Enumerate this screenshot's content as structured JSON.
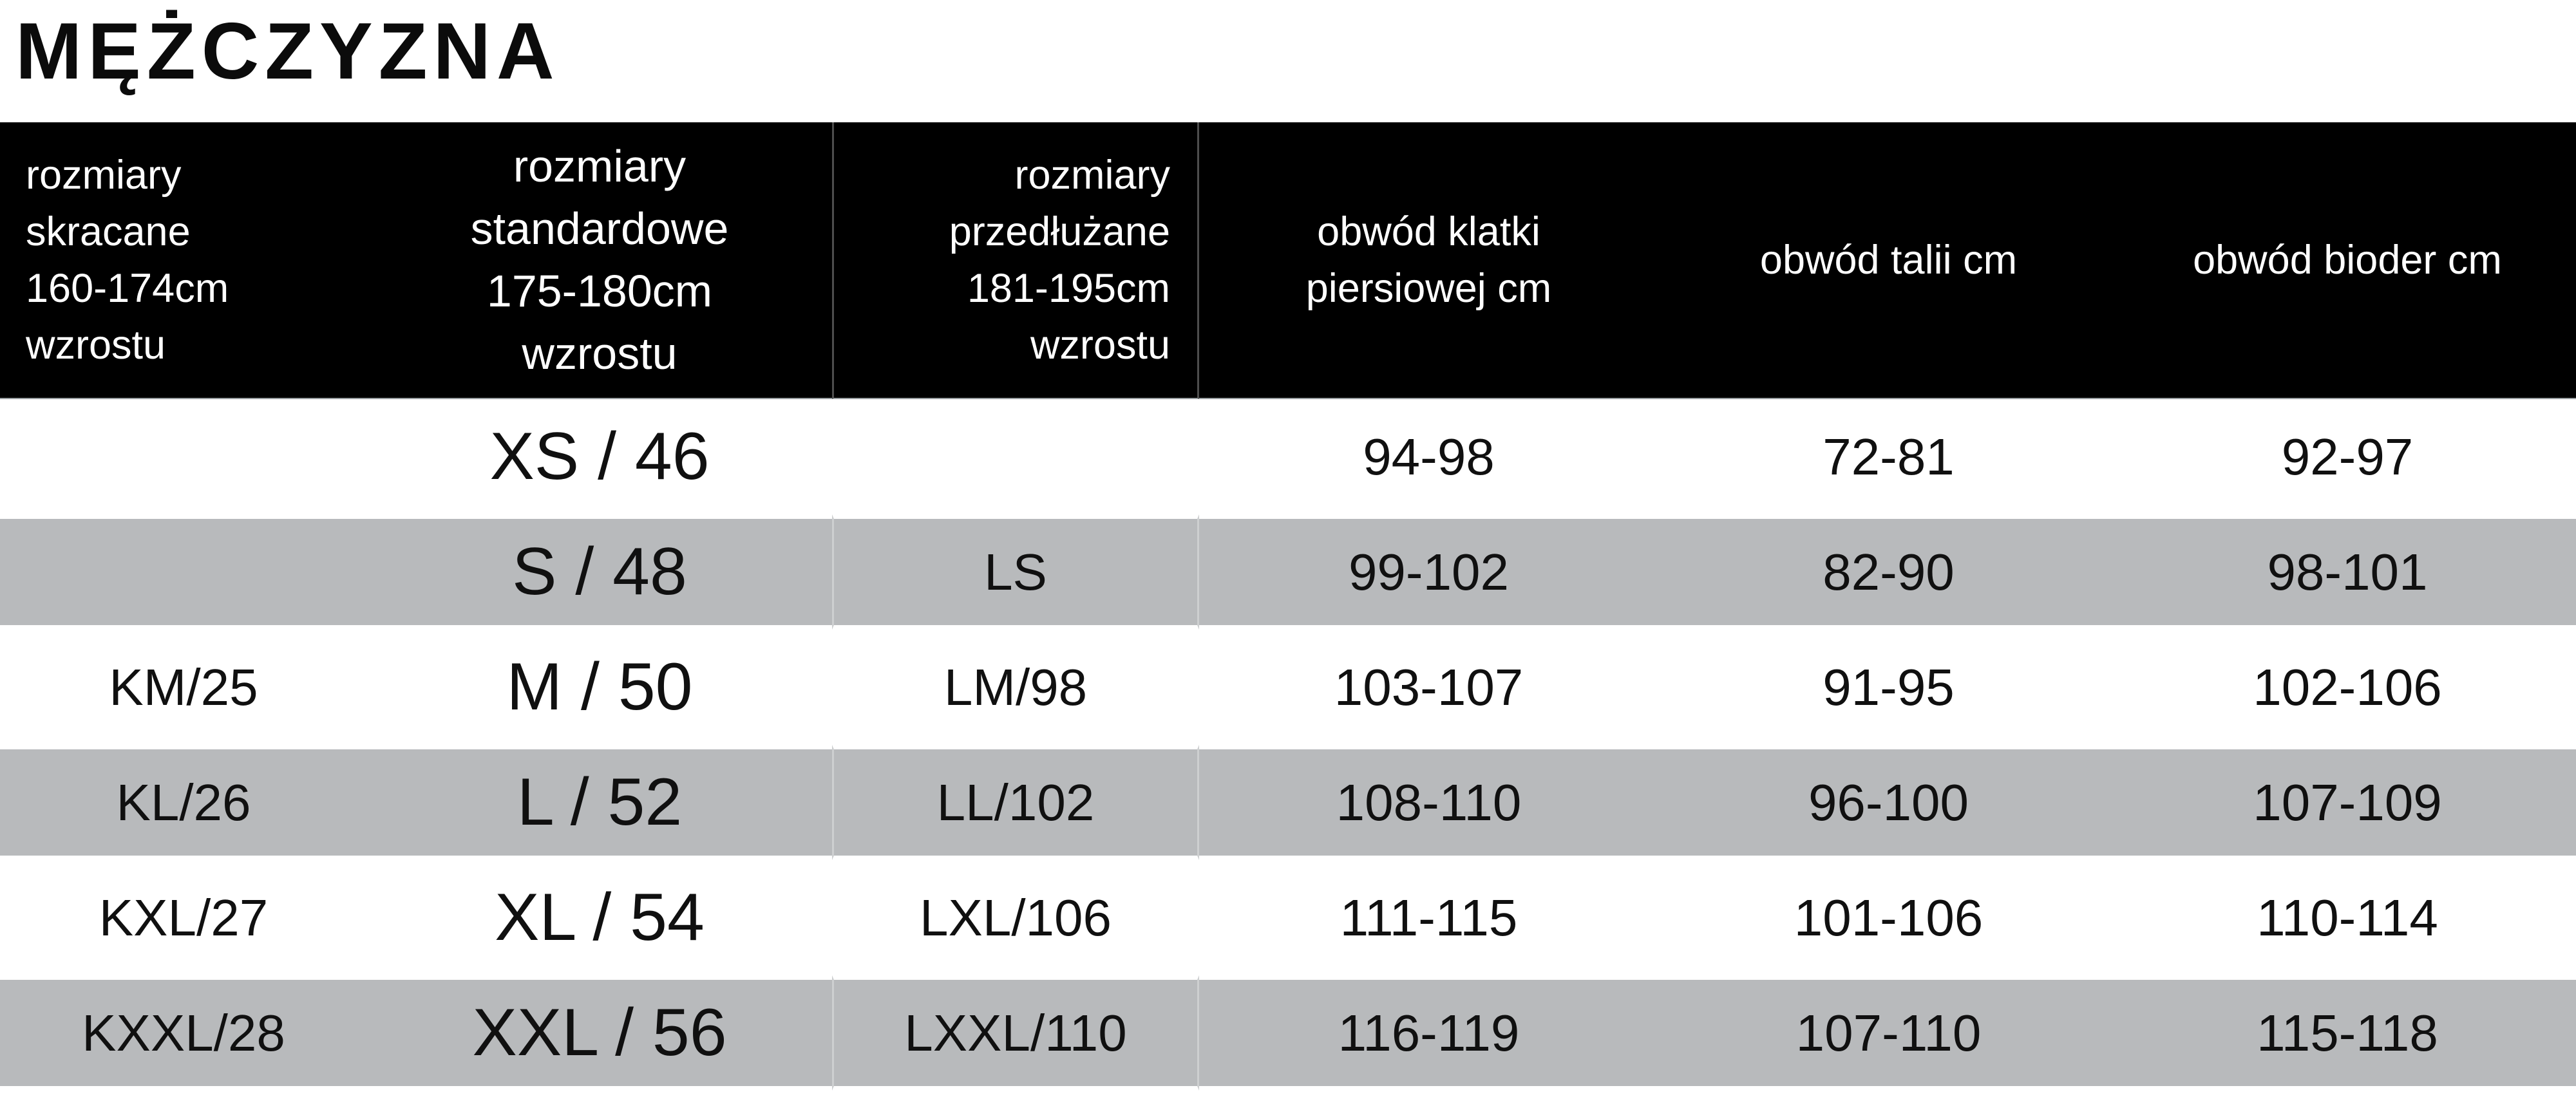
{
  "title": "MĘŻCZYZNA",
  "table": {
    "columns": [
      {
        "id": "skracane",
        "align": "left",
        "header_lines": [
          "rozmiary",
          "skracane",
          "160-174cm",
          "wzrostu"
        ]
      },
      {
        "id": "standardowe",
        "align": "center",
        "header_lines": [
          "rozmiary",
          "standardowe",
          "175-180cm",
          "wzrostu"
        ]
      },
      {
        "id": "przedluzane",
        "align": "right",
        "header_lines": [
          "rozmiary",
          "przedłużane",
          "181-195cm",
          "wzrostu"
        ]
      },
      {
        "id": "klatka",
        "align": "center",
        "header_lines": [
          "obwód klatki",
          "piersiowej cm"
        ]
      },
      {
        "id": "talia",
        "align": "center",
        "header_lines": [
          "obwód talii cm"
        ]
      },
      {
        "id": "biodra",
        "align": "center",
        "header_lines": [
          "obwód bioder cm"
        ]
      }
    ],
    "rows": [
      {
        "shaded": false,
        "skracane": "",
        "standardowe": "XS / 46",
        "przedluzane": "",
        "klatka": "94-98",
        "talia": "72-81",
        "biodra": "92-97"
      },
      {
        "shaded": true,
        "skracane": "",
        "standardowe": "S / 48",
        "przedluzane": "LS",
        "klatka": "99-102",
        "talia": "82-90",
        "biodra": "98-101"
      },
      {
        "shaded": false,
        "skracane": "KM/25",
        "standardowe": "M / 50",
        "przedluzane": "LM/98",
        "klatka": "103-107",
        "talia": "91-95",
        "biodra": "102-106"
      },
      {
        "shaded": true,
        "skracane": "KL/26",
        "standardowe": "L / 52",
        "przedluzane": "LL/102",
        "klatka": "108-110",
        "talia": "96-100",
        "biodra": "107-109"
      },
      {
        "shaded": false,
        "skracane": "KXL/27",
        "standardowe": "XL / 54",
        "przedluzane": "LXL/106",
        "klatka": "111-115",
        "talia": "101-106",
        "biodra": "110-114"
      },
      {
        "shaded": true,
        "skracane": "KXXL/28",
        "standardowe": "XXL / 56",
        "przedluzane": "LXXL/110",
        "klatka": "116-119",
        "talia": "107-110",
        "biodra": "115-118"
      }
    ],
    "colors": {
      "header_bg": "#000000",
      "header_text": "#ffffff",
      "row_plain": "#ffffff",
      "row_shaded": "#b8babc",
      "body_text": "#101010",
      "column3_divider": "rgba(255,255,255,0.3)"
    }
  },
  "chart_data": {
    "type": "table",
    "title": "MĘŻCZYZNA",
    "columns": [
      "rozmiary skracane 160-174cm wzrostu",
      "rozmiary standardowe 175-180cm wzrostu",
      "rozmiary przedłużane 181-195cm wzrostu",
      "obwód klatki piersiowej cm",
      "obwód talii cm",
      "obwód bioder cm"
    ],
    "rows": [
      [
        "",
        "XS / 46",
        "",
        "94-98",
        "72-81",
        "92-97"
      ],
      [
        "",
        "S / 48",
        "LS",
        "99-102",
        "82-90",
        "98-101"
      ],
      [
        "KM/25",
        "M / 50",
        "LM/98",
        "103-107",
        "91-95",
        "102-106"
      ],
      [
        "KL/26",
        "L / 52",
        "LL/102",
        "108-110",
        "96-100",
        "107-109"
      ],
      [
        "KXL/27",
        "XL / 54",
        "LXL/106",
        "111-115",
        "101-106",
        "110-114"
      ],
      [
        "KXXL/28",
        "XXL / 56",
        "LXXL/110",
        "116-119",
        "107-110",
        "115-118"
      ]
    ]
  }
}
